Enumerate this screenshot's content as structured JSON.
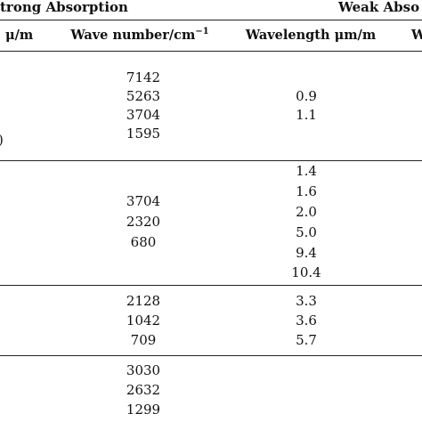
{
  "header": {
    "group_left": "trong Absorption",
    "group_right": "Weak Abso"
  },
  "columns": {
    "col1_unit": "μ/m",
    "wavenumber_label": "Wave number/cm",
    "wavenumber_exp": "−1",
    "wavelength_label": "Wavelength μm/m",
    "col4_cut": "W"
  },
  "edge_mark": ")",
  "groups": [
    {
      "wavenumbers": [
        "7142",
        "5263",
        "3704",
        "1595"
      ],
      "wavelengths": [
        "0.9",
        "1.1"
      ]
    },
    {
      "wavenumbers": [
        "3704",
        "2320",
        "680"
      ],
      "wavelengths": [
        "1.4",
        "1.6",
        "2.0",
        "5.0",
        "9.4",
        "10.4"
      ]
    },
    {
      "wavenumbers": [
        "2128",
        "1042",
        "709"
      ],
      "wavelengths": [
        "3.3",
        "3.6",
        "5.7"
      ]
    },
    {
      "wavenumbers": [
        "3030",
        "2632",
        "1299"
      ],
      "wavelengths": []
    }
  ]
}
